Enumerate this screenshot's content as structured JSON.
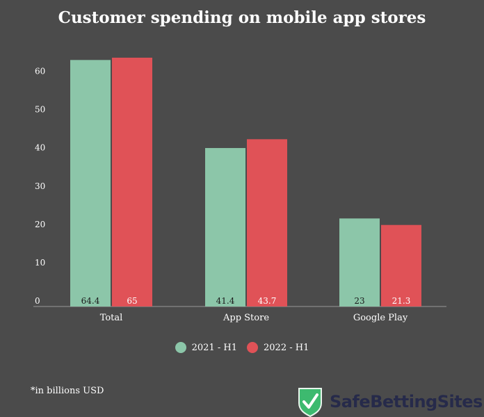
{
  "chart_data": {
    "type": "bar",
    "title": "Customer spending on mobile app stores",
    "categories": [
      "Total",
      "App Store",
      "Google Play"
    ],
    "series": [
      {
        "name": "2021 - H1",
        "values": [
          64.4,
          41.4,
          23
        ],
        "color": "#8cc6a9"
      },
      {
        "name": "2022 - H1",
        "values": [
          65,
          43.7,
          21.3
        ],
        "color": "#e05257"
      }
    ],
    "yticks": [
      0,
      10,
      20,
      30,
      40,
      50,
      60
    ],
    "ylim": [
      0,
      65
    ],
    "grid": false,
    "data_labels": "inside-bottom",
    "legend": "bottom-center",
    "xlabel": "",
    "ylabel": ""
  },
  "footnote": "*in billions USD",
  "logo": {
    "text": "SafeBettingSites",
    "icon": "shield-check-icon",
    "shield_color": "#3dba6f"
  },
  "colors": {
    "background": "#4b4b4b",
    "text": "#ffffff",
    "axis": "#9a9a9a"
  }
}
